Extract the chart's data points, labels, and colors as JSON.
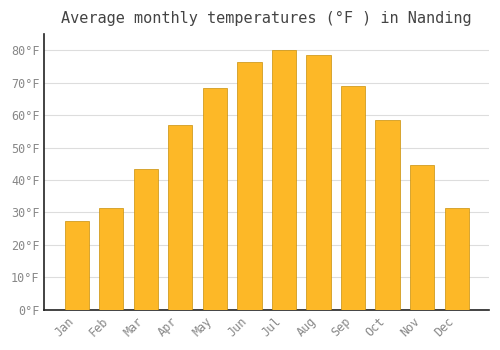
{
  "title": "Average monthly temperatures (°F ) in Nanding",
  "months": [
    "Jan",
    "Feb",
    "Mar",
    "Apr",
    "May",
    "Jun",
    "Jul",
    "Aug",
    "Sep",
    "Oct",
    "Nov",
    "Dec"
  ],
  "values": [
    27.5,
    31.5,
    43.5,
    57.0,
    68.5,
    76.5,
    80.0,
    78.5,
    69.0,
    58.5,
    44.5,
    31.5
  ],
  "bar_color": "#FDB827",
  "bar_edge_color": "#C8900A",
  "background_color": "#FFFFFF",
  "grid_color": "#DDDDDD",
  "text_color": "#888888",
  "spine_color": "#222222",
  "ylim": [
    0,
    85
  ],
  "yticks": [
    0,
    10,
    20,
    30,
    40,
    50,
    60,
    70,
    80
  ],
  "ytick_labels": [
    "0°F",
    "10°F",
    "20°F",
    "30°F",
    "40°F",
    "50°F",
    "60°F",
    "70°F",
    "80°F"
  ],
  "title_fontsize": 11,
  "tick_fontsize": 8.5
}
